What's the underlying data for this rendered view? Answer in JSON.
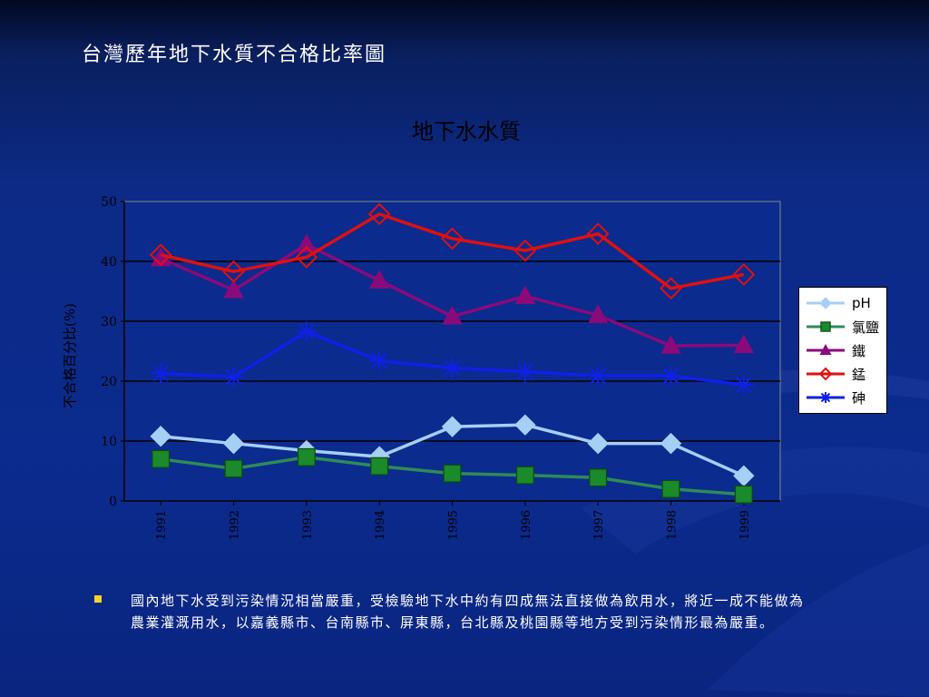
{
  "slide": {
    "title": "台灣歷年地下水質不合格比率圖",
    "bullet_text": "國內地下水受到污染情況相當嚴重，受檢驗地下水中約有四成無法直接做為飲用水，將近一成不能做為農業灌溉用水，以嘉義縣市、台南縣市、屏東縣，台北縣及桃園縣等地方受到污染情形最為嚴重。",
    "bullet_color": "#f5d327",
    "background_color": "#0b2b8e"
  },
  "chart_data": {
    "type": "line",
    "title": "地下水水質",
    "ylabel": "不合格百分比(%)",
    "xlabel": "",
    "categories": [
      "1991",
      "1992",
      "1993",
      "1994",
      "1995",
      "1996",
      "1997",
      "1998",
      "1999"
    ],
    "ylim": [
      0,
      50
    ],
    "yticks": [
      0,
      10,
      20,
      30,
      40,
      50
    ],
    "grid": true,
    "plot_background": "#0b2b8e",
    "legend_position": "right",
    "series": [
      {
        "name": "pH",
        "color": "#a6cff5",
        "marker": "diamond-filled",
        "values": [
          10.8,
          9.6,
          8.4,
          7.4,
          12.4,
          12.7,
          9.6,
          9.6,
          4.2
        ]
      },
      {
        "name": "氯鹽",
        "color": "#2e8b57",
        "marker": "square-filled",
        "values": [
          7.0,
          5.4,
          7.3,
          5.8,
          4.6,
          4.3,
          3.9,
          2.0,
          1.1
        ]
      },
      {
        "name": "鐵",
        "color": "#8b0a7a",
        "marker": "triangle-filled",
        "values": [
          40.5,
          35.2,
          42.8,
          36.8,
          30.8,
          34.2,
          31.0,
          25.9,
          26.0
        ]
      },
      {
        "name": "錳",
        "color": "#e01010",
        "marker": "diamond-open",
        "values": [
          41.1,
          38.3,
          40.7,
          47.9,
          43.8,
          41.8,
          44.6,
          35.5,
          37.8
        ]
      },
      {
        "name": "砷",
        "color": "#1020e8",
        "marker": "asterisk",
        "values": [
          21.3,
          20.7,
          28.3,
          23.4,
          22.2,
          21.6,
          20.9,
          20.9,
          19.4
        ]
      }
    ]
  }
}
